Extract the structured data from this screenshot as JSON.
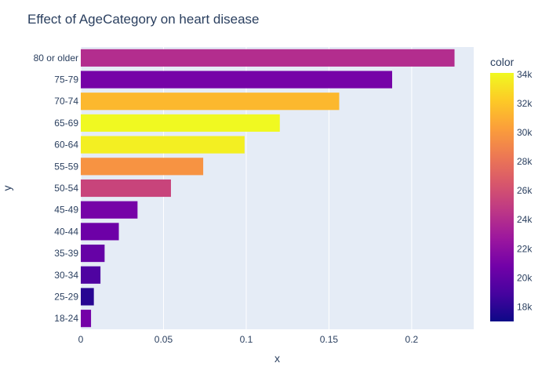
{
  "chart_data": {
    "type": "bar",
    "orientation": "horizontal",
    "title": "Effect of AgeCategory on heart disease",
    "xlabel": "x",
    "ylabel": "y",
    "xlim": [
      0,
      0.2375
    ],
    "xticks": [
      0,
      0.05,
      0.1,
      0.15,
      0.2
    ],
    "xtick_labels": [
      "0",
      "0.05",
      "0.1",
      "0.15",
      "0.2"
    ],
    "grid": true,
    "categories": [
      "18-24",
      "25-29",
      "30-34",
      "35-39",
      "40-44",
      "45-49",
      "50-54",
      "55-59",
      "60-64",
      "65-69",
      "70-74",
      "75-79",
      "80 or older"
    ],
    "values": [
      0.0062,
      0.0079,
      0.0119,
      0.0144,
      0.023,
      0.0343,
      0.0545,
      0.074,
      0.099,
      0.1203,
      0.1562,
      0.1882,
      0.2259
    ],
    "color_values": [
      20900,
      17900,
      19300,
      20300,
      20600,
      21000,
      25400,
      29700,
      33700,
      34200,
      31400,
      21000,
      24000
    ],
    "colorbar": {
      "title": "color",
      "range": [
        17000,
        34100
      ],
      "ticks": [
        18000,
        20000,
        22000,
        24000,
        26000,
        28000,
        30000,
        32000,
        34000
      ],
      "tick_labels": [
        "18k",
        "20k",
        "22k",
        "24k",
        "26k",
        "28k",
        "30k",
        "32k",
        "34k"
      ],
      "colorscale": [
        "#0d0887",
        "#46039f",
        "#7201a8",
        "#9c179e",
        "#bd3786",
        "#d8576b",
        "#ed7953",
        "#fb9f3a",
        "#fdca26",
        "#f0f921"
      ]
    }
  },
  "colors": {
    "plot_bg": "#e5ecf6",
    "grid": "#ffffff",
    "text": "#2a3f5f"
  }
}
